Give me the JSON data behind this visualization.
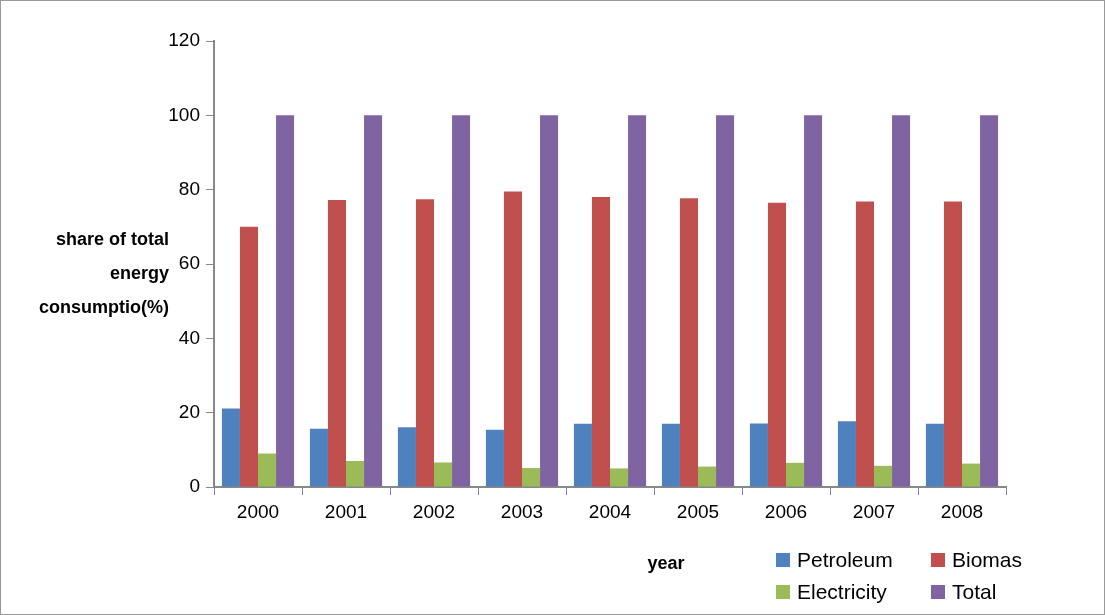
{
  "chart_data": {
    "type": "bar",
    "xlabel": "year",
    "ylabel": "share of total\nenergy\nconsumptio(%)",
    "categories": [
      "2000",
      "2001",
      "2002",
      "2003",
      "2004",
      "2005",
      "2006",
      "2007",
      "2008"
    ],
    "series": [
      {
        "name": "Petroleum",
        "color": "#4f81bd",
        "values": [
          21.1,
          15.7,
          16.1,
          15.4,
          17.0,
          17.0,
          17.1,
          17.7,
          17.0
        ]
      },
      {
        "name": "Biomas",
        "color": "#c0504d",
        "values": [
          70.0,
          77.2,
          77.4,
          79.5,
          78.0,
          77.7,
          76.5,
          76.8,
          76.8
        ]
      },
      {
        "name": "Electricity",
        "color": "#9bbb59",
        "values": [
          9.0,
          7.0,
          6.6,
          5.1,
          5.0,
          5.5,
          6.5,
          5.7,
          6.3
        ]
      },
      {
        "name": "Total",
        "color": "#8064a2",
        "values": [
          100,
          100,
          100,
          100,
          100,
          100,
          100,
          100,
          100
        ]
      }
    ],
    "ylim": [
      0,
      120
    ],
    "yticks": [
      0,
      20,
      40,
      60,
      80,
      100,
      120
    ],
    "grid": false,
    "legend": "bottom right"
  }
}
